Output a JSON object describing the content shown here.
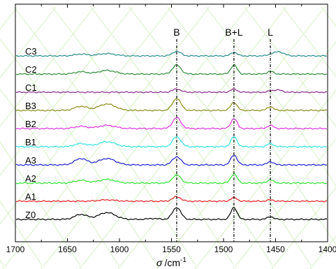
{
  "chart_data": {
    "type": "line",
    "title": "",
    "xlabel": "σ /cm⁻¹",
    "xlabel_parts": {
      "symbol": "σ",
      "unit": "/cm",
      "exponent": "-1"
    },
    "ylabel": "",
    "xlim": [
      1700,
      1400
    ],
    "x_reversed": true,
    "y_ticks_visible": false,
    "grid": false,
    "legend": "none",
    "x_ticks": [
      1700,
      1650,
      1600,
      1550,
      1500,
      1450,
      1400
    ],
    "x_tick_labels": [
      "1700",
      "1650",
      "1600",
      "1550",
      "1500",
      "1450",
      "1400"
    ],
    "markers": [
      {
        "label": "B",
        "x": 1545
      },
      {
        "label": "B+L",
        "x": 1490
      },
      {
        "label": "L",
        "x": 1455
      }
    ],
    "series": [
      {
        "name": "C3",
        "color": "#2a8c8c",
        "offset": 9,
        "peaks": [
          [
            1545,
            0.5,
            4
          ],
          [
            1490,
            0.4,
            3
          ],
          [
            1455,
            0.1,
            3
          ],
          [
            1447,
            0.45,
            5
          ],
          [
            1612,
            0.25,
            8
          ],
          [
            1637,
            0.2,
            6
          ]
        ]
      },
      {
        "name": "C2",
        "color": "#2e8b3a",
        "offset": 8,
        "peaks": [
          [
            1545,
            1.0,
            4
          ],
          [
            1490,
            1.0,
            3
          ],
          [
            1455,
            0.3,
            3
          ],
          [
            1612,
            0.4,
            8
          ],
          [
            1637,
            0.25,
            6
          ]
        ]
      },
      {
        "name": "C1",
        "color": "#8a2a8a",
        "offset": 7,
        "peaks": [
          [
            1545,
            0.35,
            4
          ],
          [
            1490,
            0.35,
            3
          ],
          [
            1455,
            0.1,
            3
          ],
          [
            1448,
            0.25,
            4
          ]
        ]
      },
      {
        "name": "B3",
        "color": "#8a8a1a",
        "offset": 6,
        "peaks": [
          [
            1545,
            1.3,
            4
          ],
          [
            1490,
            0.9,
            3
          ],
          [
            1455,
            0.4,
            3
          ],
          [
            1612,
            0.7,
            8
          ],
          [
            1637,
            0.45,
            6
          ]
        ]
      },
      {
        "name": "B2",
        "color": "#e030e0",
        "offset": 5,
        "peaks": [
          [
            1545,
            1.2,
            4
          ],
          [
            1490,
            1.1,
            3
          ],
          [
            1455,
            0.35,
            3
          ],
          [
            1612,
            0.35,
            8
          ],
          [
            1637,
            0.25,
            6
          ]
        ]
      },
      {
        "name": "B1",
        "color": "#30e0e0",
        "offset": 4,
        "peaks": [
          [
            1545,
            1.1,
            4
          ],
          [
            1490,
            1.1,
            3
          ],
          [
            1455,
            0.35,
            3
          ],
          [
            1612,
            0.55,
            8
          ],
          [
            1637,
            0.35,
            6
          ]
        ]
      },
      {
        "name": "A3",
        "color": "#2020d0",
        "offset": 3,
        "peaks": [
          [
            1545,
            0.9,
            4
          ],
          [
            1490,
            1.1,
            3
          ],
          [
            1455,
            0.35,
            3
          ],
          [
            1612,
            0.7,
            8
          ],
          [
            1637,
            0.7,
            6
          ]
        ]
      },
      {
        "name": "A2",
        "color": "#30e030",
        "offset": 2,
        "peaks": [
          [
            1545,
            0.9,
            4
          ],
          [
            1490,
            1.0,
            3
          ],
          [
            1455,
            0.35,
            3
          ],
          [
            1612,
            0.4,
            8
          ],
          [
            1637,
            0.3,
            6
          ]
        ]
      },
      {
        "name": "A1",
        "color": "#e02020",
        "offset": 1,
        "peaks": [
          [
            1545,
            0.5,
            4
          ],
          [
            1490,
            0.4,
            3
          ],
          [
            1455,
            0.15,
            3
          ],
          [
            1612,
            0.15,
            8
          ]
        ]
      },
      {
        "name": "Z0",
        "color": "#000000",
        "offset": 0,
        "peaks": [
          [
            1545,
            1.3,
            4
          ],
          [
            1490,
            1.3,
            3
          ],
          [
            1455,
            0.3,
            3
          ],
          [
            1612,
            0.75,
            8
          ],
          [
            1637,
            0.55,
            6
          ],
          [
            1568,
            0.1,
            5
          ]
        ]
      }
    ]
  }
}
